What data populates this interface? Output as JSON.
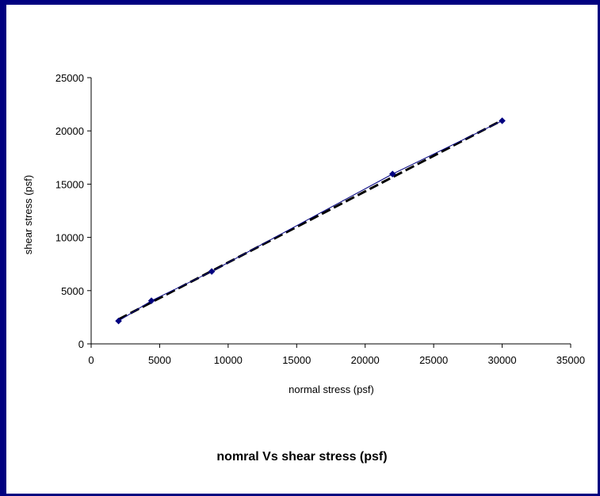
{
  "page": {
    "border_color": "#000080",
    "background": "#ffffff"
  },
  "chart_data": {
    "type": "scatter",
    "title": "nomral Vs shear stress (psf)",
    "xlabel": "normal stress (psf)",
    "ylabel": "shear stress (psf)",
    "xlim": [
      0,
      35000
    ],
    "ylim": [
      0,
      25000
    ],
    "x_ticks": [
      "0",
      "5000",
      "10000",
      "15000",
      "20000",
      "25000",
      "30000",
      "35000"
    ],
    "y_ticks": [
      "0",
      "5000",
      "10000",
      "15000",
      "20000",
      "25000"
    ],
    "grid": false,
    "legend": "none",
    "series": [
      {
        "x": [
          2000,
          4400,
          8800,
          22000,
          30000
        ],
        "y": [
          2150,
          4050,
          6800,
          15950,
          20950
        ],
        "marker": "diamond",
        "line": "solid",
        "color": "#000080"
      }
    ],
    "trendline": {
      "style": "dashed",
      "color": "#000000",
      "x": [
        2000,
        30000
      ],
      "y": [
        2300,
        21000
      ]
    }
  }
}
